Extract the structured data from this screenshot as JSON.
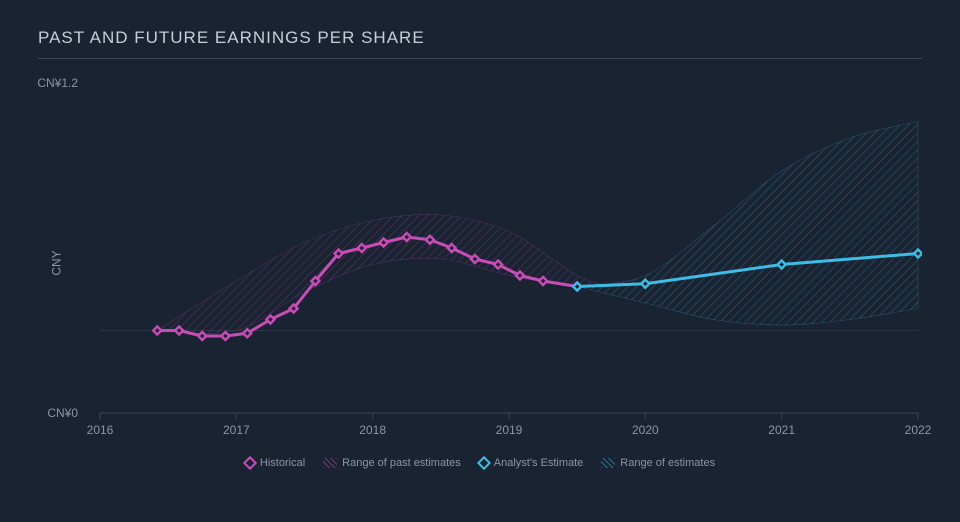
{
  "chart": {
    "type": "line-with-area-range",
    "title": "PAST AND FUTURE EARNINGS PER SHARE",
    "background_color": "#1a2332",
    "title_color": "#c5ced9",
    "title_fontsize": 17,
    "tick_color": "#8b95a6",
    "gridline_color": "#3a4556",
    "tick_fontsize": 12,
    "y_axis": {
      "label": "CNY",
      "min": 0,
      "max": 1.2,
      "ticks": [
        {
          "value": 0,
          "label": "CN¥0"
        },
        {
          "value": 1.2,
          "label": "CN¥1.2"
        }
      ]
    },
    "x_axis": {
      "min": 2016,
      "max": 2022,
      "ticks": [
        {
          "value": 2016,
          "label": "2016"
        },
        {
          "value": 2017,
          "label": "2017"
        },
        {
          "value": 2018,
          "label": "2018"
        },
        {
          "value": 2019,
          "label": "2019"
        },
        {
          "value": 2020,
          "label": "2020"
        },
        {
          "value": 2021,
          "label": "2021"
        },
        {
          "value": 2022,
          "label": "2022"
        }
      ]
    },
    "series": {
      "historical": {
        "label": "Historical",
        "color": "#c84db6",
        "line_width": 3,
        "marker": "diamond",
        "marker_size": 8,
        "points": [
          {
            "x": 2016.42,
            "y": 0.3
          },
          {
            "x": 2016.58,
            "y": 0.3
          },
          {
            "x": 2016.75,
            "y": 0.28
          },
          {
            "x": 2016.92,
            "y": 0.28
          },
          {
            "x": 2017.08,
            "y": 0.29
          },
          {
            "x": 2017.25,
            "y": 0.34
          },
          {
            "x": 2017.42,
            "y": 0.38
          },
          {
            "x": 2017.58,
            "y": 0.48
          },
          {
            "x": 2017.75,
            "y": 0.58
          },
          {
            "x": 2017.92,
            "y": 0.6
          },
          {
            "x": 2018.08,
            "y": 0.62
          },
          {
            "x": 2018.25,
            "y": 0.64
          },
          {
            "x": 2018.42,
            "y": 0.63
          },
          {
            "x": 2018.58,
            "y": 0.6
          },
          {
            "x": 2018.75,
            "y": 0.56
          },
          {
            "x": 2018.92,
            "y": 0.54
          },
          {
            "x": 2019.08,
            "y": 0.5
          },
          {
            "x": 2019.25,
            "y": 0.48
          },
          {
            "x": 2019.5,
            "y": 0.46
          }
        ]
      },
      "past_range": {
        "label": "Range of past estimates",
        "color": "#c84db6",
        "fill_opacity": 0.15,
        "hatch": true,
        "upper": [
          {
            "x": 2016.42,
            "y": 0.3
          },
          {
            "x": 2017.0,
            "y": 0.48
          },
          {
            "x": 2017.5,
            "y": 0.62
          },
          {
            "x": 2018.0,
            "y": 0.7
          },
          {
            "x": 2018.5,
            "y": 0.72
          },
          {
            "x": 2019.0,
            "y": 0.66
          },
          {
            "x": 2019.5,
            "y": 0.5
          },
          {
            "x": 2019.75,
            "y": 0.46
          }
        ],
        "lower": [
          {
            "x": 2016.42,
            "y": 0.3
          },
          {
            "x": 2017.0,
            "y": 0.3
          },
          {
            "x": 2017.5,
            "y": 0.44
          },
          {
            "x": 2018.0,
            "y": 0.54
          },
          {
            "x": 2018.5,
            "y": 0.56
          },
          {
            "x": 2019.0,
            "y": 0.5
          },
          {
            "x": 2019.5,
            "y": 0.46
          },
          {
            "x": 2019.75,
            "y": 0.46
          }
        ]
      },
      "estimate": {
        "label": "Analyst's Estimate",
        "color": "#3dbde5",
        "line_width": 3,
        "marker": "diamond",
        "marker_size": 8,
        "points": [
          {
            "x": 2019.5,
            "y": 0.46
          },
          {
            "x": 2020.0,
            "y": 0.47
          },
          {
            "x": 2021.0,
            "y": 0.54
          },
          {
            "x": 2022.0,
            "y": 0.58
          }
        ]
      },
      "future_range": {
        "label": "Range of estimates",
        "color": "#3dbde5",
        "fill_opacity": 0.15,
        "hatch": true,
        "upper": [
          {
            "x": 2019.5,
            "y": 0.46
          },
          {
            "x": 2020.0,
            "y": 0.5
          },
          {
            "x": 2020.5,
            "y": 0.68
          },
          {
            "x": 2021.0,
            "y": 0.88
          },
          {
            "x": 2021.5,
            "y": 1.0
          },
          {
            "x": 2022.0,
            "y": 1.06
          }
        ],
        "lower": [
          {
            "x": 2019.5,
            "y": 0.46
          },
          {
            "x": 2020.0,
            "y": 0.4
          },
          {
            "x": 2020.5,
            "y": 0.34
          },
          {
            "x": 2021.0,
            "y": 0.32
          },
          {
            "x": 2021.5,
            "y": 0.34
          },
          {
            "x": 2022.0,
            "y": 0.38
          }
        ]
      }
    },
    "legend": [
      {
        "kind": "line",
        "label_path": "chart.series.historical.label",
        "color": "#c84db6"
      },
      {
        "kind": "area",
        "label_path": "chart.series.past_range.label",
        "color": "#c84db6"
      },
      {
        "kind": "line",
        "label_path": "chart.series.estimate.label",
        "color": "#3dbde5"
      },
      {
        "kind": "area",
        "label_path": "chart.series.future_range.label",
        "color": "#3dbde5"
      }
    ]
  }
}
